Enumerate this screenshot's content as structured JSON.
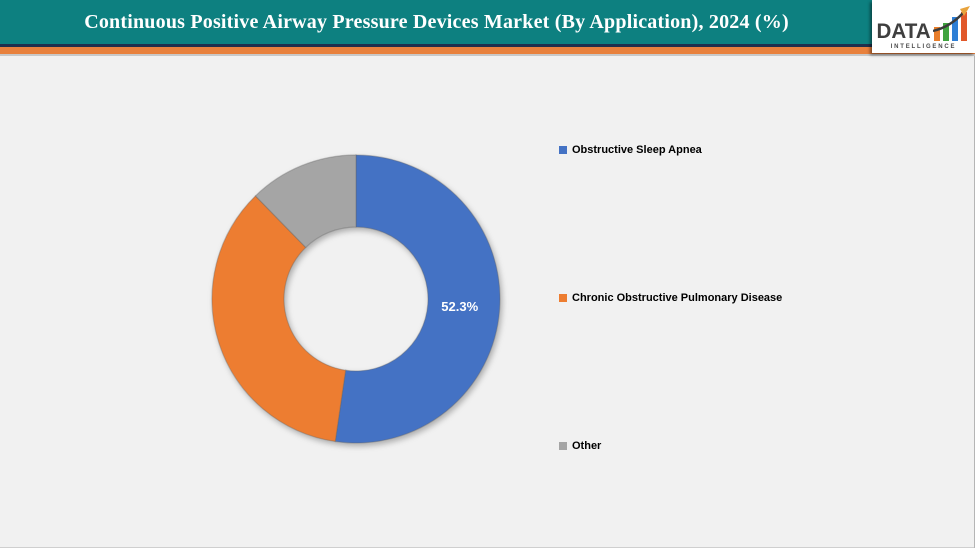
{
  "header": {
    "title": "Continuous Positive Airway Pressure Devices Market (By Application), 2024 (%)",
    "bar_color": "#0D8080",
    "stripe_color": "#E8813D",
    "logo": {
      "text": "DATA",
      "subtext": "INTELLIGENCE",
      "icon": "bar-chart-growth-arrow-icon",
      "bar_colors": [
        "#E87D2A",
        "#3FA43F",
        "#2E7FD6",
        "#E1582A"
      ],
      "arrow_color": "#3c3c3c",
      "arrowhead_color": "#E8A33D"
    }
  },
  "chart_data": {
    "type": "pie",
    "subtype": "donut",
    "title": "Continuous Positive Airway Pressure Devices Market (By Application), 2024 (%)",
    "unit": "%",
    "categories": [
      "Obstructive Sleep Apnea",
      "Chronic Obstructive Pulmonary Disease",
      "Other"
    ],
    "values": [
      52.3,
      35.4,
      12.3
    ],
    "labels_shown": [
      "52.3%",
      "",
      ""
    ],
    "colors": [
      "#4472C4",
      "#ED7D31",
      "#A5A5A5"
    ],
    "start_angle_deg": 0,
    "direction": "clockwise",
    "inner_radius_ratio": 0.5,
    "legend_position": "right",
    "data_label_color": "#FFFFFF",
    "background_color": "#F1F1F1"
  },
  "legend": {
    "items": [
      {
        "label": "Obstructive Sleep Apnea",
        "color": "#4472C4"
      },
      {
        "label": "Chronic Obstructive Pulmonary Disease",
        "color": "#ED7D31"
      },
      {
        "label": "Other",
        "color": "#A5A5A5"
      }
    ]
  }
}
